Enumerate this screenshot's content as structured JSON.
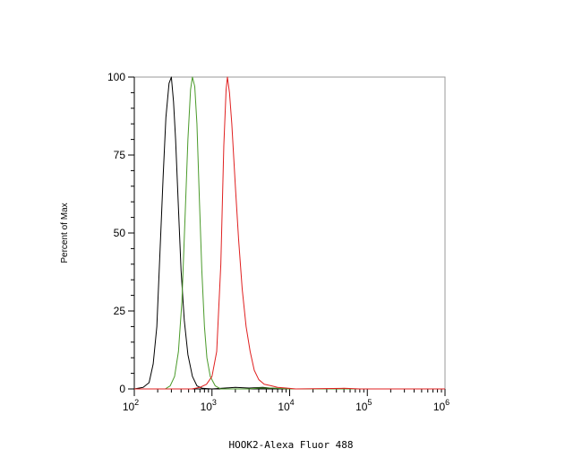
{
  "chart_data": {
    "type": "line",
    "xlabel": "HOOK2-Alexa Fluor 488",
    "ylabel": "Percent of Max",
    "xscale": "log",
    "xlim": [
      100,
      1000000
    ],
    "ylim": [
      0,
      100
    ],
    "x_ticks": [
      {
        "value": 100,
        "base": "10",
        "exp": "2"
      },
      {
        "value": 1000,
        "base": "10",
        "exp": "3"
      },
      {
        "value": 10000,
        "base": "10",
        "exp": "4"
      },
      {
        "value": 100000,
        "base": "10",
        "exp": "5"
      },
      {
        "value": 1000000,
        "base": "10",
        "exp": "6"
      }
    ],
    "y_ticks": [
      {
        "value": 0,
        "label": "0"
      },
      {
        "value": 25,
        "label": "25"
      },
      {
        "value": 50,
        "label": "50"
      },
      {
        "value": 75,
        "label": "75"
      },
      {
        "value": 100,
        "label": "100"
      }
    ],
    "grid": false,
    "legend": "none",
    "series": [
      {
        "color": "#000000",
        "points": [
          [
            100,
            0
          ],
          [
            130,
            0.5
          ],
          [
            155,
            2
          ],
          [
            175,
            8
          ],
          [
            195,
            20
          ],
          [
            215,
            45
          ],
          [
            235,
            68
          ],
          [
            255,
            87
          ],
          [
            280,
            98
          ],
          [
            300,
            100
          ],
          [
            320,
            92
          ],
          [
            340,
            80
          ],
          [
            370,
            58
          ],
          [
            400,
            38
          ],
          [
            440,
            22
          ],
          [
            490,
            11
          ],
          [
            560,
            4
          ],
          [
            640,
            1
          ],
          [
            750,
            0.2
          ],
          [
            1000,
            0
          ],
          [
            2000,
            0.5
          ],
          [
            3000,
            0.3
          ],
          [
            4500,
            0.5
          ],
          [
            6000,
            0.2
          ],
          [
            10000,
            0
          ],
          [
            100000,
            0
          ],
          [
            1000000,
            0
          ]
        ]
      },
      {
        "color": "#4a9a2a",
        "points": [
          [
            100,
            0
          ],
          [
            250,
            0
          ],
          [
            290,
            1
          ],
          [
            330,
            4
          ],
          [
            370,
            12
          ],
          [
            410,
            28
          ],
          [
            450,
            55
          ],
          [
            490,
            80
          ],
          [
            530,
            96
          ],
          [
            560,
            100
          ],
          [
            600,
            97
          ],
          [
            640,
            85
          ],
          [
            690,
            60
          ],
          [
            740,
            38
          ],
          [
            800,
            20
          ],
          [
            860,
            10
          ],
          [
            950,
            4
          ],
          [
            1100,
            1
          ],
          [
            1300,
            0
          ],
          [
            3000,
            0
          ],
          [
            4000,
            0.3
          ],
          [
            6000,
            0.3
          ],
          [
            10000,
            0
          ],
          [
            1000000,
            0
          ]
        ]
      },
      {
        "color": "#e02020",
        "points": [
          [
            100,
            0
          ],
          [
            550,
            0
          ],
          [
            700,
            0.5
          ],
          [
            850,
            1.5
          ],
          [
            1000,
            4
          ],
          [
            1150,
            12
          ],
          [
            1300,
            40
          ],
          [
            1420,
            78
          ],
          [
            1520,
            96
          ],
          [
            1580,
            100
          ],
          [
            1680,
            95
          ],
          [
            1800,
            85
          ],
          [
            2000,
            65
          ],
          [
            2200,
            48
          ],
          [
            2450,
            32
          ],
          [
            2750,
            20
          ],
          [
            3100,
            12
          ],
          [
            3500,
            6
          ],
          [
            4000,
            3
          ],
          [
            4700,
            1.5
          ],
          [
            5800,
            1
          ],
          [
            7000,
            0.5
          ],
          [
            9000,
            0.3
          ],
          [
            12000,
            0
          ],
          [
            50000,
            0.2
          ],
          [
            80000,
            0
          ],
          [
            1000000,
            0
          ]
        ]
      }
    ]
  }
}
